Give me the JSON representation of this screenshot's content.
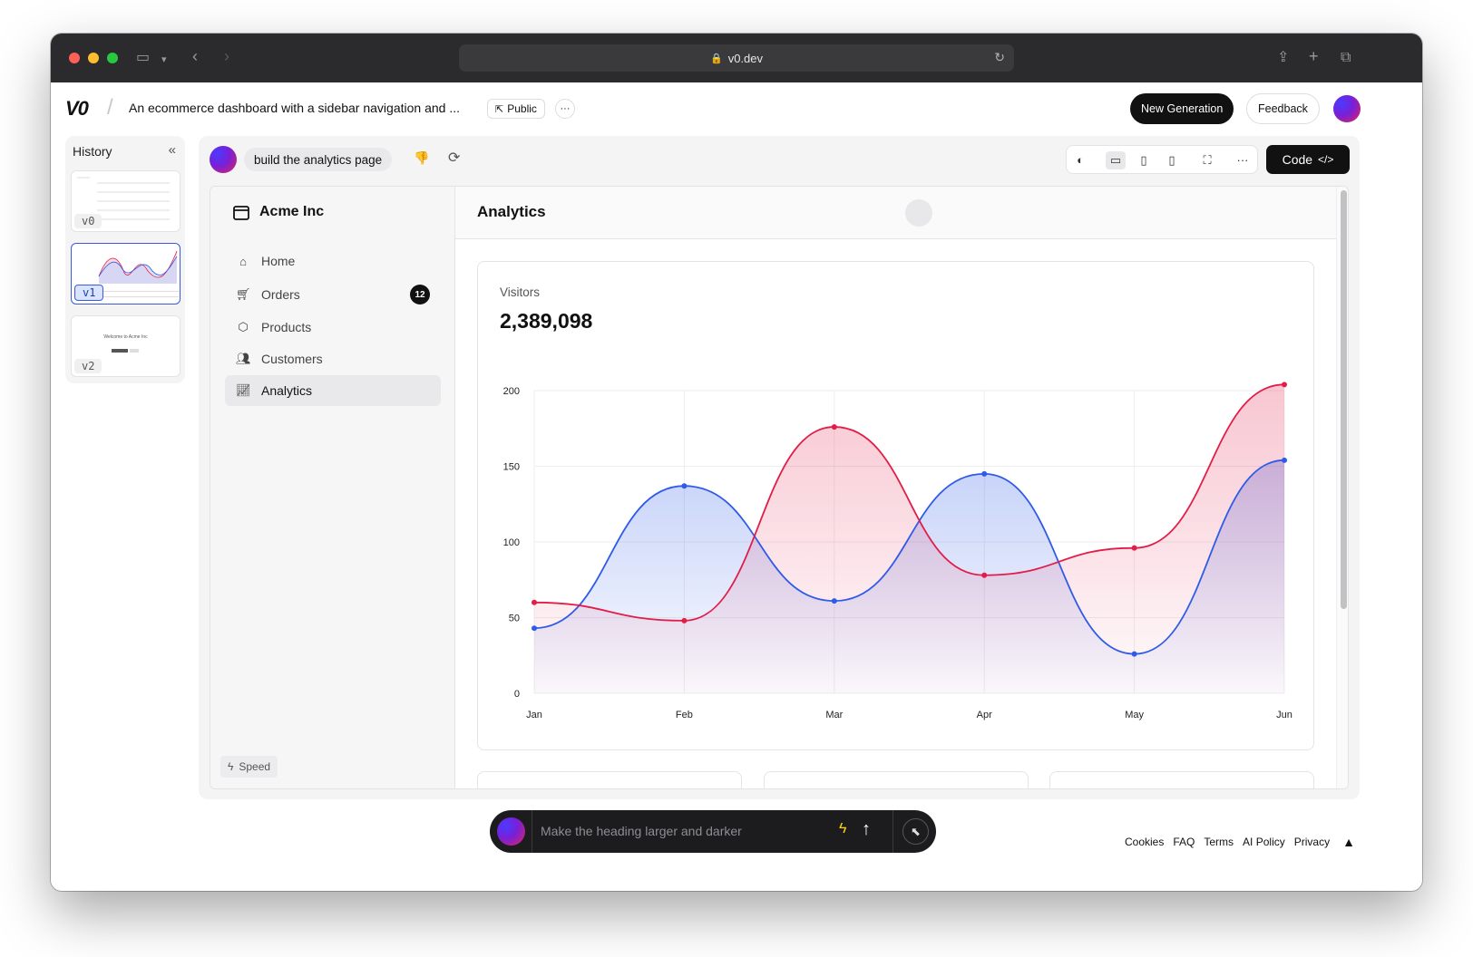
{
  "browser": {
    "url": "v0.dev",
    "icons": [
      "sidebar-icon",
      "chevron-down-icon",
      "back-icon",
      "forward-icon",
      "lock-icon",
      "reload-icon",
      "share-icon",
      "plus-icon",
      "tabs-icon"
    ]
  },
  "header": {
    "logo": "V0",
    "project_title": "An ecommerce dashboard with a sidebar navigation and ...",
    "visibility": "Public",
    "more": "···",
    "new_generation": "New Generation",
    "feedback": "Feedback"
  },
  "history": {
    "title": "History",
    "collapse": "«",
    "versions": [
      "v0",
      "v1",
      "v2"
    ],
    "selected": "v1",
    "v2_preview_text": "Welcome to Acme Inc"
  },
  "prompt": {
    "text": "build the analytics page",
    "dislike": "👎",
    "regenerate": "⟳"
  },
  "toolbar": {
    "icons": [
      "palette-icon",
      "desktop-icon",
      "tablet-icon",
      "mobile-icon",
      "fullscreen-icon",
      "more-icon"
    ],
    "code_label": "Code",
    "code_icon": "</>"
  },
  "app": {
    "brand": "Acme Inc",
    "nav": [
      {
        "label": "Home",
        "icon": "home-icon"
      },
      {
        "label": "Orders",
        "icon": "cart-icon",
        "badge": "12"
      },
      {
        "label": "Products",
        "icon": "package-icon"
      },
      {
        "label": "Customers",
        "icon": "users-icon"
      },
      {
        "label": "Analytics",
        "icon": "line-chart-icon",
        "active": true
      }
    ],
    "speed_label": "Speed",
    "page_title": "Analytics"
  },
  "card": {
    "label": "Visitors",
    "value": "2,389,098"
  },
  "chart_data": {
    "type": "area",
    "categories": [
      "Jan",
      "Feb",
      "Mar",
      "Apr",
      "May",
      "Jun"
    ],
    "ylim": [
      0,
      200
    ],
    "yticks": [
      0,
      50,
      100,
      150,
      200
    ],
    "grid": true,
    "series": [
      {
        "color": "#2f5be7",
        "fill": "#c9d6fb",
        "values": [
          43,
          137,
          61,
          145,
          26,
          154
        ]
      },
      {
        "color": "#e11d48",
        "fill": "#fbd0d8",
        "values": [
          60,
          48,
          176,
          78,
          96,
          204
        ]
      }
    ]
  },
  "composer": {
    "placeholder": "Make the heading larger and darker"
  },
  "footer": {
    "links": [
      "Cookies",
      "FAQ",
      "Terms",
      "AI Policy",
      "Privacy"
    ]
  }
}
